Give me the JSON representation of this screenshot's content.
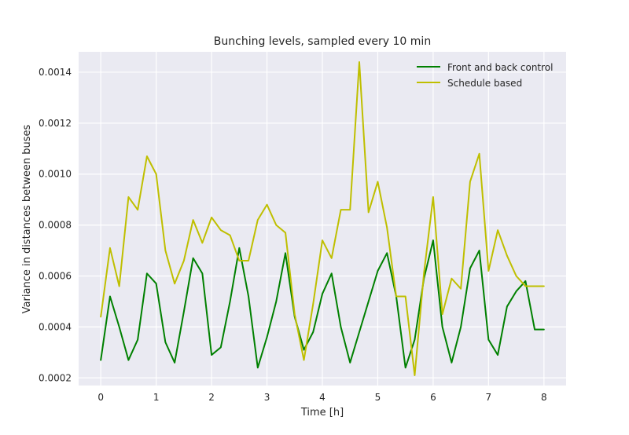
{
  "chart_data": {
    "type": "line",
    "title": "Bunching levels, sampled every 10 min",
    "xlabel": "Time [h]",
    "ylabel": "Variance in distances between buses",
    "xlim": [
      -0.4,
      8.4
    ],
    "ylim": [
      0.00017,
      0.00148
    ],
    "xticks": [
      0,
      1,
      2,
      3,
      4,
      5,
      6,
      7,
      8
    ],
    "xtick_labels": [
      "0",
      "1",
      "2",
      "3",
      "4",
      "5",
      "6",
      "7",
      "8"
    ],
    "yticks": [
      0.0002,
      0.0004,
      0.0006,
      0.0008,
      0.001,
      0.0012,
      0.0014
    ],
    "ytick_labels": [
      "0.0002",
      "0.0004",
      "0.0006",
      "0.0008",
      "0.0010",
      "0.0012",
      "0.0014"
    ],
    "grid": true,
    "background": "#eaeaf2",
    "legend_position": "top-right",
    "x": [
      0,
      0.1667,
      0.3333,
      0.5,
      0.6667,
      0.8333,
      1.0,
      1.1667,
      1.3333,
      1.5,
      1.6667,
      1.8333,
      2.0,
      2.1667,
      2.3333,
      2.5,
      2.6667,
      2.8333,
      3.0,
      3.1667,
      3.3333,
      3.5,
      3.6667,
      3.8333,
      4.0,
      4.1667,
      4.3333,
      4.5,
      4.6667,
      4.8333,
      5.0,
      5.1667,
      5.3333,
      5.5,
      5.6667,
      5.8333,
      6.0,
      6.1667,
      6.3333,
      6.5,
      6.6667,
      6.8333,
      7.0,
      7.1667,
      7.3333,
      7.5,
      7.6667,
      7.8333,
      8.0
    ],
    "series": [
      {
        "name": "Front and back control",
        "color": "#008000",
        "values": [
          0.00027,
          0.00052,
          0.0004,
          0.00027,
          0.00035,
          0.00061,
          0.00057,
          0.00034,
          0.00026,
          0.00046,
          0.00067,
          0.00061,
          0.00029,
          0.00032,
          0.0005,
          0.00071,
          0.00052,
          0.00024,
          0.00036,
          0.0005,
          0.00069,
          0.00044,
          0.00031,
          0.00038,
          0.00053,
          0.00061,
          0.0004,
          0.00026,
          0.00038,
          0.0005,
          0.00062,
          0.00069,
          0.00052,
          0.00024,
          0.00035,
          0.00059,
          0.00074,
          0.0004,
          0.00026,
          0.0004,
          0.00063,
          0.0007,
          0.00035,
          0.00029,
          0.00048,
          0.00054,
          0.00058,
          0.00039,
          0.00039
        ]
      },
      {
        "name": "Schedule based",
        "color": "#bfbf00",
        "values": [
          0.00044,
          0.00071,
          0.00056,
          0.00091,
          0.00086,
          0.00107,
          0.001,
          0.0007,
          0.00057,
          0.00066,
          0.00082,
          0.00073,
          0.00083,
          0.00078,
          0.00076,
          0.00066,
          0.00066,
          0.00082,
          0.00088,
          0.0008,
          0.00077,
          0.00045,
          0.00027,
          0.00049,
          0.00074,
          0.00067,
          0.00086,
          0.00086,
          0.00144,
          0.00085,
          0.00097,
          0.00079,
          0.00052,
          0.00052,
          0.00021,
          0.00061,
          0.00091,
          0.00045,
          0.00059,
          0.00055,
          0.00097,
          0.00108,
          0.00062,
          0.00078,
          0.00068,
          0.0006,
          0.00056,
          0.00056,
          0.00056
        ]
      }
    ]
  }
}
